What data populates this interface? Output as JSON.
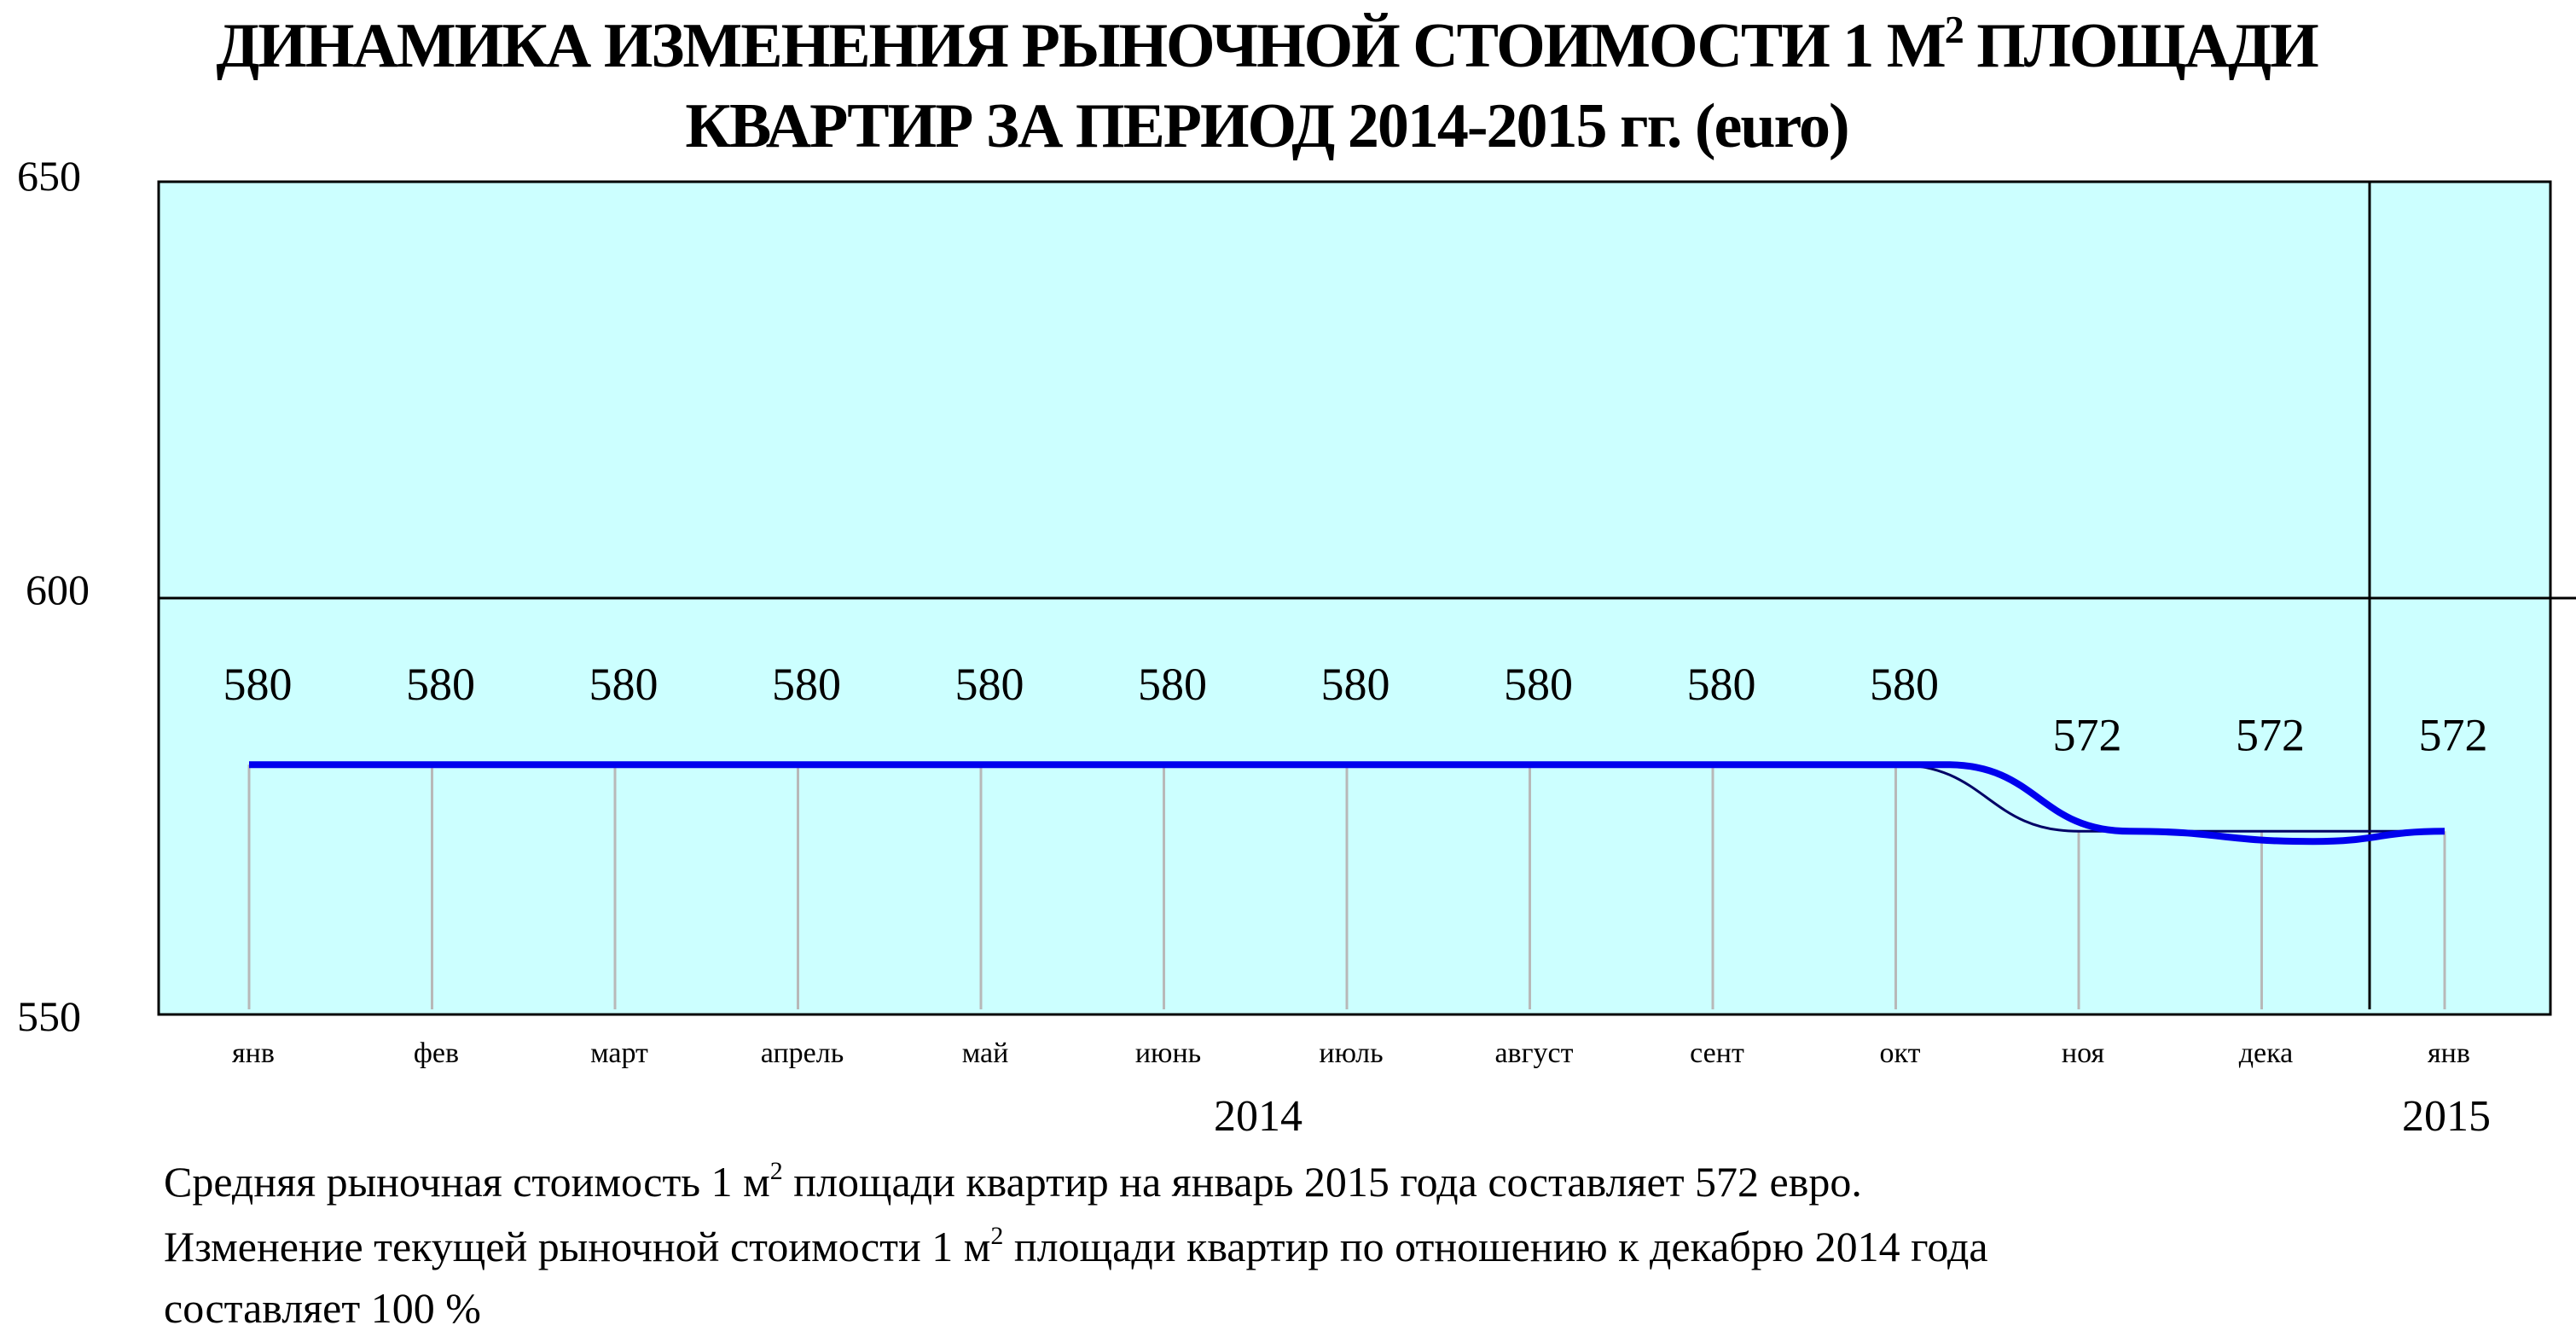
{
  "chart_data": {
    "type": "line",
    "title_line1": "ДИНАМИКА ИЗМЕНЕНИЯ РЫНОЧНОЙ СТОИМОСТИ 1 М",
    "title_sup": "2",
    "title_line1_end": " ПЛОЩАДИ",
    "title_line2": "КВАРТИР ЗА ПЕРИОД 2014-2015 гг. (euro)",
    "yticks": [
      "650",
      "600",
      "550"
    ],
    "ylim": [
      550,
      650
    ],
    "gridlines": [
      600
    ],
    "categories": [
      "янв",
      "фев",
      "март",
      "апрель",
      "май",
      "июнь",
      "июль",
      "август",
      "сент",
      "окт",
      "ноя",
      "дека",
      "янв"
    ],
    "years": [
      "2014",
      "2015"
    ],
    "values": [
      580,
      580,
      580,
      580,
      580,
      580,
      580,
      580,
      580,
      580,
      572,
      572,
      572
    ],
    "data_labels": [
      "580",
      "580",
      "580",
      "580",
      "580",
      "580",
      "580",
      "580",
      "580",
      "580",
      "572",
      "572",
      "572"
    ],
    "colors": {
      "plot_bg": "#ccffff",
      "line": "#0000ee",
      "drop_lines": "#b8b8b8",
      "axis": "#000000"
    }
  },
  "notes": {
    "line1_a": "Средняя рыночная стоимость 1 м",
    "line1_sup": "2",
    "line1_b": " площади квартир на январь 2015 года составляет 572 евро.",
    "line2_a": "Изменение текущей рыночной стоимости 1 м",
    "line2_sup": "2",
    "line2_b": " площади квартир по отношению к декабрю 2014 года",
    "line3": "составляет  100 %"
  }
}
